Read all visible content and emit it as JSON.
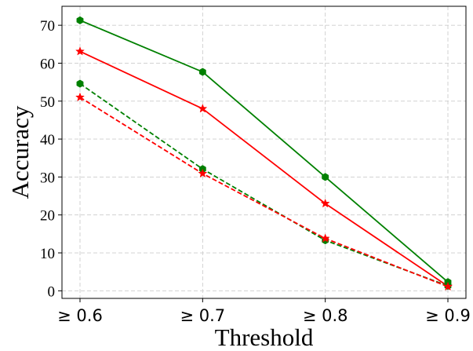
{
  "chart_data": {
    "type": "line",
    "title": "",
    "xlabel": "Threshold",
    "ylabel": "Accuracy",
    "categories": [
      "≥ 0.6",
      "≥ 0.7",
      "≥ 0.8",
      "≥ 0.9"
    ],
    "ylim": [
      -2,
      75
    ],
    "yticks": [
      0,
      10,
      20,
      30,
      40,
      50,
      60,
      70
    ],
    "grid": true,
    "legend": false,
    "series": [
      {
        "color": "#008000",
        "line_style": "solid",
        "marker": "hexagon",
        "values": [
          71.3,
          57.7,
          30.0,
          2.3
        ]
      },
      {
        "color": "#ff0000",
        "line_style": "solid",
        "marker": "star",
        "values": [
          63.1,
          48.0,
          23.0,
          1.2
        ]
      },
      {
        "color": "#008000",
        "line_style": "dashed",
        "marker": "hexagon",
        "values": [
          54.6,
          32.1,
          13.3,
          1.3
        ]
      },
      {
        "color": "#ff0000",
        "line_style": "dashed",
        "marker": "star",
        "values": [
          51.0,
          30.9,
          13.8,
          1.1
        ]
      }
    ]
  }
}
